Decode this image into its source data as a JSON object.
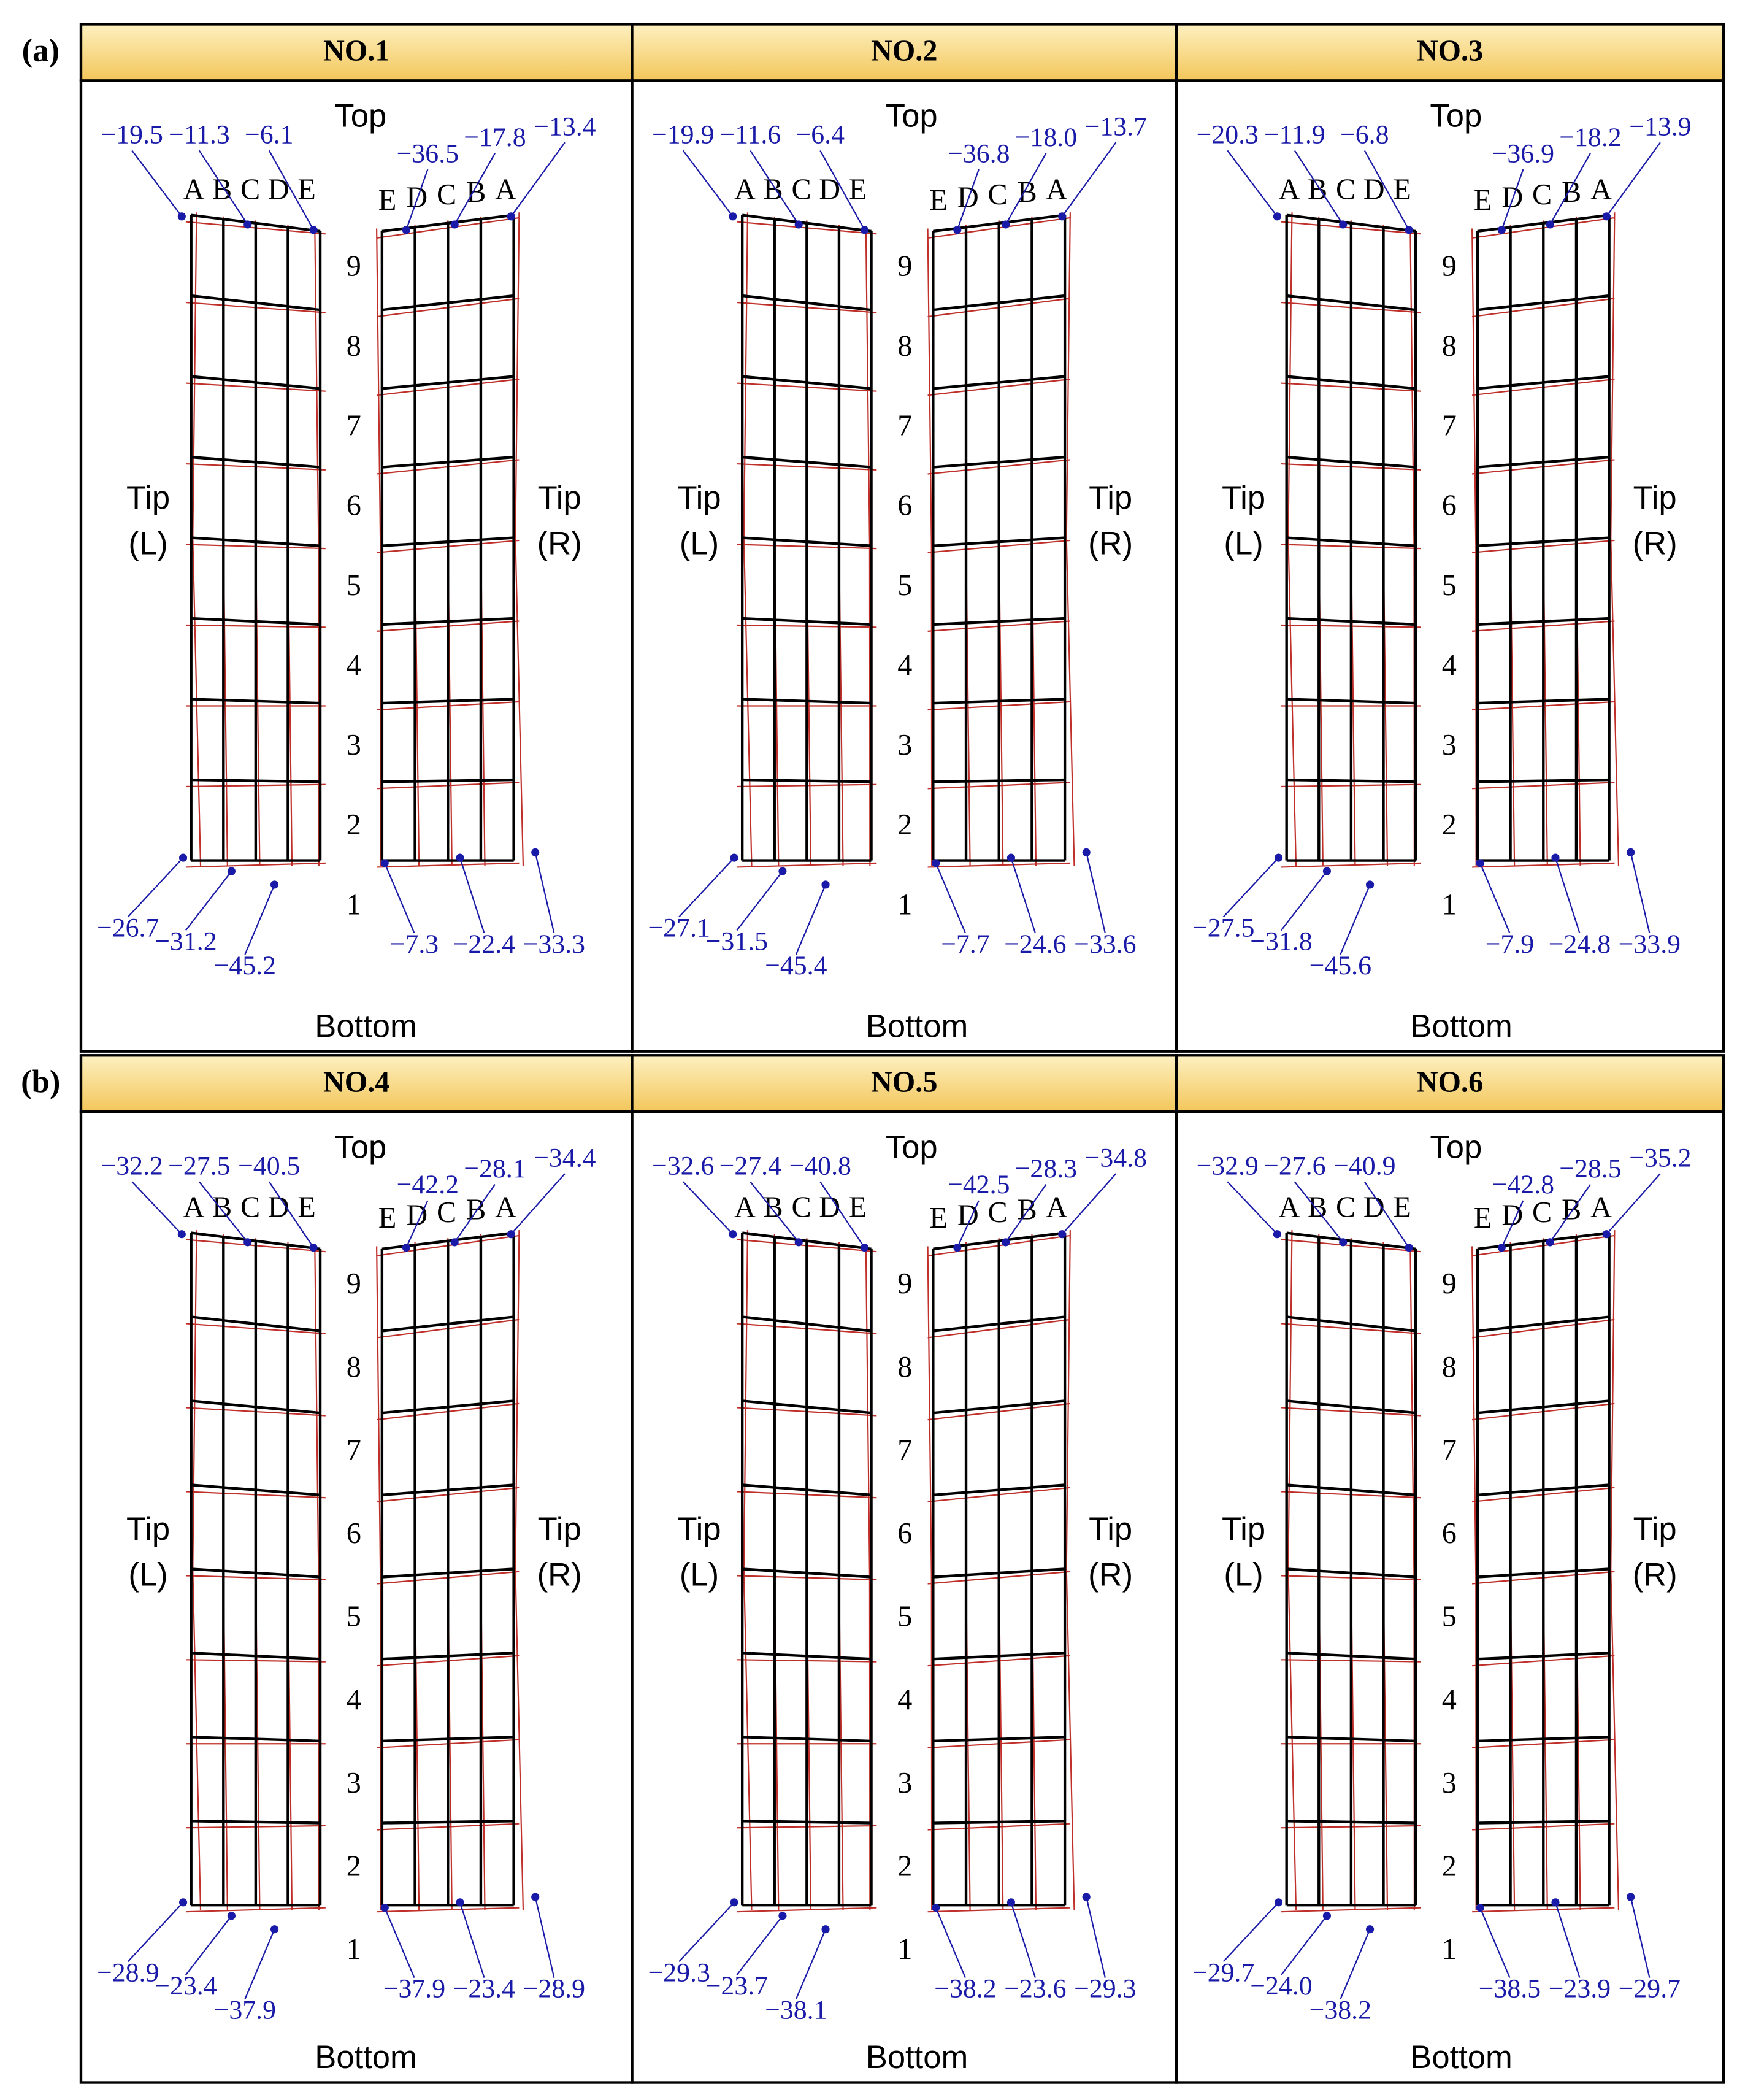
{
  "labels": {
    "top": "Top",
    "bottom": "Bottom",
    "tip": "Tip",
    "left": "(L)",
    "right": "(R)"
  },
  "left_columns": [
    "A",
    "B",
    "C",
    "D",
    "E"
  ],
  "right_columns": [
    "E",
    "D",
    "C",
    "B",
    "A"
  ],
  "row_numbers": [
    1,
    2,
    3,
    4,
    5,
    6,
    7,
    8,
    9
  ],
  "groups": [
    {
      "label": "(a)",
      "panels": [
        {
          "title": "NO.1",
          "top_left": [
            "−19.5",
            "−11.3",
            "−6.1"
          ],
          "top_right": [
            "−36.5",
            "−17.8",
            "−13.4"
          ],
          "bottom_left": [
            "−26.7",
            "−31.2",
            "−45.2"
          ],
          "bottom_right": [
            "−7.3",
            "−22.4",
            "−33.3"
          ]
        },
        {
          "title": "NO.2",
          "top_left": [
            "−19.9",
            "−11.6",
            "−6.4"
          ],
          "top_right": [
            "−36.8",
            "−18.0",
            "−13.7"
          ],
          "bottom_left": [
            "−27.1",
            "−31.5",
            "−45.4"
          ],
          "bottom_right": [
            "−7.7",
            "−24.6",
            "−33.6"
          ]
        },
        {
          "title": "NO.3",
          "top_left": [
            "−20.3",
            "−11.9",
            "−6.8"
          ],
          "top_right": [
            "−36.9",
            "−18.2",
            "−13.9"
          ],
          "bottom_left": [
            "−27.5",
            "−31.8",
            "−45.6"
          ],
          "bottom_right": [
            "−7.9",
            "−24.8",
            "−33.9"
          ]
        }
      ]
    },
    {
      "label": "(b)",
      "panels": [
        {
          "title": "NO.4",
          "top_left": [
            "−32.2",
            "−27.5",
            "−40.5"
          ],
          "top_right": [
            "−42.2",
            "−28.1",
            "−34.4"
          ],
          "bottom_left": [
            "−28.9",
            "−23.4",
            "−37.9"
          ],
          "bottom_right": [
            "−37.9",
            "−23.4",
            "−28.9"
          ]
        },
        {
          "title": "NO.5",
          "top_left": [
            "−32.6",
            "−27.4",
            "−40.8"
          ],
          "top_right": [
            "−42.5",
            "−28.3",
            "−34.8"
          ],
          "bottom_left": [
            "−29.3",
            "−23.7",
            "−38.1"
          ],
          "bottom_right": [
            "−38.2",
            "−23.6",
            "−29.3"
          ]
        },
        {
          "title": "NO.6",
          "top_left": [
            "−32.9",
            "−27.6",
            "−40.9"
          ],
          "top_right": [
            "−42.8",
            "−28.5",
            "−35.2"
          ],
          "bottom_left": [
            "−29.7",
            "−24.0",
            "−38.2"
          ],
          "bottom_right": [
            "−38.5",
            "−23.9",
            "−29.7"
          ]
        }
      ]
    }
  ]
}
